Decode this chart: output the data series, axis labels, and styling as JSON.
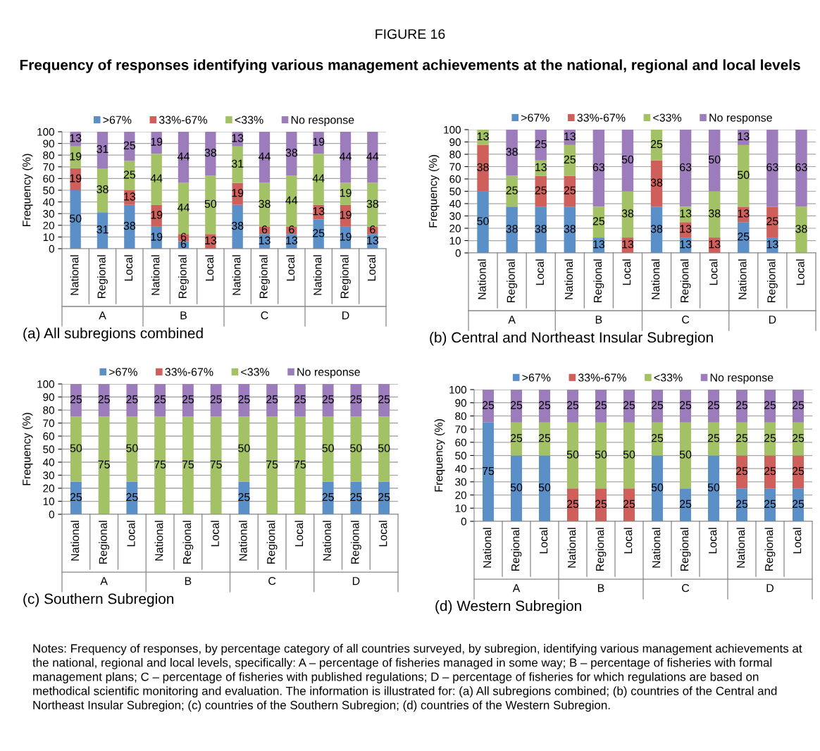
{
  "chart_data": [
    {
      "type": "other",
      "title": "FIGURE 16",
      "subtitle": "Frequency of responses identifying various management achievements at the national, regional and local levels"
    },
    {
      "type": "bar",
      "stacked": true,
      "xlabel": "(a) All subregions combined",
      "ylabel": "Frequency (%)",
      "ylim": [
        0,
        100
      ],
      "yticks": [
        0,
        10,
        20,
        30,
        40,
        50,
        60,
        70,
        80,
        90,
        100
      ],
      "grid": "y",
      "legend": "top",
      "categories": [
        "National",
        "Regional",
        "Local",
        "National",
        "Regional",
        "Local",
        "National",
        "Regional",
        "Local",
        "National",
        "Regional",
        "Local"
      ],
      "annotations": [
        "A",
        "B",
        "C",
        "D"
      ],
      "series": [
        {
          "name": ">67%",
          "color": "#5b8fc8",
          "values": [
            50,
            31.25,
            37.5,
            18.75,
            6.25,
            0,
            37.5,
            12.5,
            12.5,
            25,
            18.75,
            12.5
          ],
          "value_labels": [
            "50",
            "31",
            "38",
            "19",
            "6",
            null,
            "38",
            "13",
            "13",
            "25",
            "19",
            "13"
          ]
        },
        {
          "name": "33%-67%",
          "color": "#cf5f5a",
          "values": [
            18.75,
            0,
            12.5,
            18.75,
            6.25,
            12.5,
            18.75,
            6.25,
            6.25,
            12.5,
            18.75,
            6.25
          ],
          "value_labels": [
            "19",
            null,
            "13",
            "19",
            "6",
            "13",
            "19",
            "6",
            "6",
            "13",
            "19",
            "6"
          ]
        },
        {
          "name": "<33%",
          "color": "#a3c266",
          "values": [
            18.75,
            37.5,
            25,
            43.75,
            43.75,
            50,
            31.25,
            37.5,
            43.75,
            43.75,
            18.75,
            37.5
          ],
          "value_labels": [
            "19",
            "38",
            "25",
            "44",
            "44",
            "50",
            "31",
            "38",
            "44",
            "44",
            "19",
            "38"
          ]
        },
        {
          "name": "No response",
          "color": "#9d7cbc",
          "values": [
            12.5,
            31.25,
            25,
            18.75,
            43.75,
            37.5,
            12.5,
            43.75,
            37.5,
            18.75,
            43.75,
            43.75
          ],
          "value_labels": [
            "13",
            "31",
            "25",
            "19",
            "44",
            "38",
            "13",
            "44",
            "38",
            "19",
            "44",
            "44"
          ]
        }
      ]
    },
    {
      "type": "bar",
      "stacked": true,
      "xlabel": "(b) Central and Northeast Insular Subregion",
      "ylabel": "Frequency (%)",
      "ylim": [
        0,
        100
      ],
      "yticks": [
        0,
        10,
        20,
        30,
        40,
        50,
        60,
        70,
        80,
        90,
        100
      ],
      "grid": "y",
      "legend": "top",
      "categories": [
        "National",
        "Regional",
        "Local",
        "National",
        "Regional",
        "Local",
        "National",
        "Regional",
        "Local",
        "National",
        "Regional",
        "Local"
      ],
      "annotations": [
        "A",
        "B",
        "C",
        "D"
      ],
      "series": [
        {
          "name": ">67%",
          "color": "#5b8fc8",
          "values": [
            50,
            37.5,
            37.5,
            37.5,
            12.5,
            0,
            37.5,
            12.5,
            0,
            25,
            12.5,
            0
          ],
          "value_labels": [
            "50",
            "38",
            "38",
            "38",
            "13",
            null,
            "38",
            "13",
            null,
            "25",
            "13",
            null
          ]
        },
        {
          "name": "33%-67%",
          "color": "#cf5f5a",
          "values": [
            37.5,
            0,
            25,
            25,
            0,
            12.5,
            37.5,
            12.5,
            12.5,
            12.5,
            25,
            0
          ],
          "value_labels": [
            "38",
            null,
            "25",
            "25",
            null,
            "13",
            "38",
            "13",
            "13",
            "13",
            "25",
            null
          ]
        },
        {
          "name": "<33%",
          "color": "#a3c266",
          "values": [
            12.5,
            25,
            12.5,
            25,
            25,
            37.5,
            25,
            12.5,
            37.5,
            50,
            0,
            37.5
          ],
          "value_labels": [
            "13",
            "25",
            "13",
            "25",
            "25",
            "38",
            "25",
            "13",
            "38",
            "50",
            null,
            "38"
          ]
        },
        {
          "name": "No response",
          "color": "#9d7cbc",
          "values": [
            0,
            37.5,
            25,
            12.5,
            62.5,
            50,
            0,
            62.5,
            50,
            12.5,
            62.5,
            62.5
          ],
          "value_labels": [
            null,
            "38",
            "25",
            "13",
            "63",
            "50",
            null,
            "63",
            "50",
            "13",
            "63",
            "63"
          ]
        }
      ]
    },
    {
      "type": "bar",
      "stacked": true,
      "xlabel": "(c) Southern Subregion",
      "ylabel": "Frequency (%)",
      "ylim": [
        0,
        100
      ],
      "yticks": [
        0,
        10,
        20,
        30,
        40,
        50,
        60,
        70,
        80,
        90,
        100
      ],
      "grid": "y",
      "legend": "top",
      "categories": [
        "National",
        "Regional",
        "Local",
        "National",
        "Regional",
        "Local",
        "National",
        "Regional",
        "Local",
        "National",
        "Regional",
        "Local"
      ],
      "annotations": [
        "A",
        "B",
        "C",
        "D"
      ],
      "series": [
        {
          "name": ">67%",
          "color": "#5b8fc8",
          "values": [
            25,
            0,
            25,
            0,
            0,
            0,
            25,
            0,
            0,
            25,
            25,
            25
          ],
          "value_labels": [
            "25",
            null,
            "25",
            null,
            null,
            null,
            "25",
            null,
            null,
            "25",
            "25",
            "25"
          ]
        },
        {
          "name": "33%-67%",
          "color": "#cf5f5a",
          "values": [
            0,
            0,
            0,
            0,
            0,
            0,
            0,
            0,
            0,
            0,
            0,
            0
          ],
          "value_labels": [
            null,
            null,
            null,
            null,
            null,
            null,
            null,
            null,
            null,
            null,
            null,
            null
          ]
        },
        {
          "name": "<33%",
          "color": "#a3c266",
          "values": [
            50,
            75,
            50,
            75,
            75,
            75,
            50,
            75,
            75,
            50,
            50,
            50
          ],
          "value_labels": [
            "50",
            "75",
            "50",
            "75",
            "75",
            "75",
            "50",
            "75",
            "75",
            "50",
            "50",
            "50"
          ]
        },
        {
          "name": "No response",
          "color": "#9d7cbc",
          "values": [
            25,
            25,
            25,
            25,
            25,
            25,
            25,
            25,
            25,
            25,
            25,
            25
          ],
          "value_labels": [
            "25",
            "25",
            "25",
            "25",
            "25",
            "25",
            "25",
            "25",
            "25",
            "25",
            "25",
            "25"
          ]
        }
      ]
    },
    {
      "type": "bar",
      "stacked": true,
      "xlabel": "(d) Western Subregion",
      "ylabel": "Frequency (%)",
      "ylim": [
        0,
        100
      ],
      "yticks": [
        0,
        10,
        20,
        30,
        40,
        50,
        60,
        70,
        80,
        90,
        100
      ],
      "grid": "y",
      "legend": "top",
      "categories": [
        "National",
        "Regional",
        "Local",
        "National",
        "Regional",
        "Local",
        "National",
        "Regional",
        "Local",
        "National",
        "Regional",
        "Local"
      ],
      "annotations": [
        "A",
        "B",
        "C",
        "D"
      ],
      "series": [
        {
          "name": ">67%",
          "color": "#5b8fc8",
          "values": [
            75,
            50,
            50,
            0,
            0,
            0,
            50,
            25,
            50,
            25,
            25,
            25
          ],
          "value_labels": [
            "75",
            "50",
            "50",
            null,
            null,
            null,
            "50",
            "25",
            "50",
            "25",
            "25",
            "25"
          ]
        },
        {
          "name": "33%-67%",
          "color": "#cf5f5a",
          "values": [
            0,
            0,
            0,
            25,
            25,
            25,
            0,
            0,
            0,
            25,
            25,
            25
          ],
          "value_labels": [
            null,
            null,
            null,
            "25",
            "25",
            "25",
            null,
            null,
            null,
            "25",
            "25",
            "25"
          ]
        },
        {
          "name": "<33%",
          "color": "#a3c266",
          "values": [
            0,
            25,
            25,
            50,
            50,
            50,
            25,
            50,
            25,
            25,
            25,
            25
          ],
          "value_labels": [
            null,
            "25",
            "25",
            "50",
            "50",
            "50",
            "25",
            "50",
            "25",
            "25",
            "25",
            "25"
          ]
        },
        {
          "name": "No response",
          "color": "#9d7cbc",
          "values": [
            25,
            25,
            25,
            25,
            25,
            25,
            25,
            25,
            25,
            25,
            25,
            25
          ],
          "value_labels": [
            "25",
            "25",
            "25",
            "25",
            "25",
            "25",
            "25",
            "25",
            "25",
            "25",
            "25",
            "25"
          ]
        }
      ]
    },
    {
      "type": "other",
      "annotations": [
        "Notes: Frequency of responses, by percentage category of all countries surveyed, by subregion, identifying various management achievements at the national, regional and local levels, specifically: A – percentage of fisheries managed in some way; B – percentage of fisheries with formal management plans; C – percentage of fisheries with published regulations; D – percentage of fisheries for which regulations are based on methodical scientific monitoring and evaluation. The information is illustrated for: (a) All subregions combined; (b) countries of the Central and Northeast Insular Subregion; (c) countries of the Southern Subregion; (d) countries of the Western Subregion."
      ]
    }
  ]
}
